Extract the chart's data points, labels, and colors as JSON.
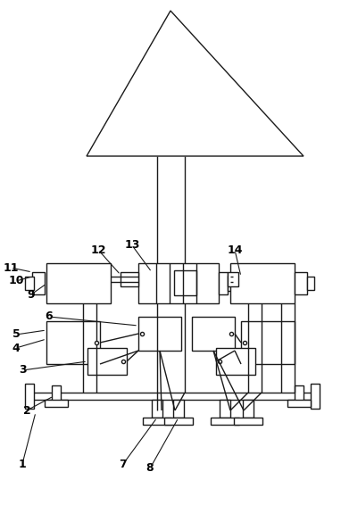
{
  "bg_color": "#ffffff",
  "line_color": "#1a1a1a",
  "line_width": 1.0,
  "fig_width": 3.82,
  "fig_height": 5.66,
  "dpi": 100
}
